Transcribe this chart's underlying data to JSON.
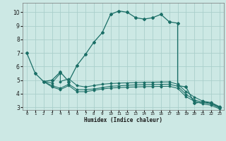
{
  "background_color": "#cce8e4",
  "grid_color": "#aacfcb",
  "line_color": "#1a6e66",
  "xlabel": "Humidex (Indice chaleur)",
  "xlim": [
    -0.5,
    23.5
  ],
  "ylim": [
    2.8,
    10.7
  ],
  "yticks": [
    3,
    4,
    5,
    6,
    7,
    8,
    9,
    10
  ],
  "xticks": [
    0,
    1,
    2,
    3,
    4,
    5,
    6,
    7,
    8,
    9,
    10,
    11,
    12,
    13,
    14,
    15,
    16,
    17,
    18,
    19,
    20,
    21,
    22,
    23
  ],
  "curve1_x": [
    0,
    1,
    2,
    3,
    4,
    5,
    6,
    7,
    8,
    9,
    10,
    11,
    12,
    13,
    14,
    15,
    16,
    17,
    18,
    18,
    19,
    20,
    21,
    22,
    23
  ],
  "curve1_y": [
    7.0,
    5.5,
    4.9,
    5.0,
    5.6,
    4.9,
    6.1,
    6.9,
    7.8,
    8.5,
    9.85,
    10.1,
    10.0,
    9.6,
    9.5,
    9.6,
    9.85,
    9.3,
    9.2,
    4.6,
    4.5,
    3.3,
    3.4,
    3.3,
    3.0
  ],
  "curve2_x": [
    2,
    3,
    4,
    4,
    5,
    6,
    7,
    8,
    9,
    10,
    11,
    12,
    13,
    14,
    15,
    16,
    17,
    18,
    19,
    20,
    21,
    22,
    23
  ],
  "curve2_y": [
    4.9,
    4.8,
    5.5,
    4.9,
    5.1,
    4.6,
    4.5,
    4.6,
    4.7,
    4.75,
    4.78,
    4.8,
    4.82,
    4.84,
    4.85,
    4.86,
    4.87,
    4.7,
    4.15,
    3.75,
    3.45,
    3.35,
    3.05
  ],
  "curve3_x": [
    2,
    3,
    4,
    5,
    6,
    7,
    8,
    9,
    10,
    11,
    12,
    13,
    14,
    15,
    16,
    17,
    18,
    19,
    20,
    21,
    22,
    23
  ],
  "curve3_y": [
    4.9,
    4.6,
    4.4,
    4.7,
    4.3,
    4.3,
    4.35,
    4.45,
    4.55,
    4.58,
    4.62,
    4.65,
    4.67,
    4.68,
    4.69,
    4.7,
    4.55,
    3.95,
    3.55,
    3.35,
    3.25,
    2.95
  ],
  "curve4_x": [
    2,
    3,
    4,
    5,
    6,
    7,
    8,
    9,
    10,
    11,
    12,
    13,
    14,
    15,
    16,
    17,
    18,
    19,
    20,
    21,
    22,
    23
  ],
  "curve4_y": [
    4.9,
    4.5,
    4.3,
    4.6,
    4.15,
    4.15,
    4.25,
    4.35,
    4.42,
    4.45,
    4.48,
    4.5,
    4.52,
    4.53,
    4.54,
    4.55,
    4.4,
    3.78,
    3.45,
    3.25,
    3.15,
    2.88
  ]
}
